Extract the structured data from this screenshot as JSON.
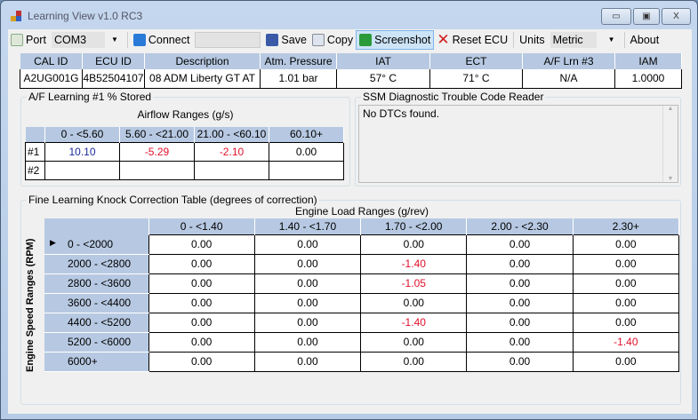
{
  "window": {
    "title": "Learning View v1.0 RC3",
    "minimize": "▭",
    "maximize": "▣",
    "close": "X"
  },
  "toolbar": {
    "port_label": "Port",
    "port_value": "COM3",
    "connect_label": "Connect",
    "connect_field": "",
    "save_label": "Save",
    "copy_label": "Copy",
    "screenshot_label": "Screenshot",
    "reset_label": "Reset ECU",
    "units_label": "Units",
    "units_value": "Metric",
    "about_label": "About"
  },
  "info": {
    "headers": [
      "CAL ID",
      "ECU ID",
      "Description",
      "Atm. Pressure",
      "IAT",
      "ECT",
      "A/F Lrn #3",
      "IAM"
    ],
    "values": [
      "A2UG001G",
      "4B52504107",
      "08 ADM Liberty GT AT",
      "1.01 bar",
      "57° C",
      "71° C",
      "N/A",
      "1.0000"
    ]
  },
  "af": {
    "title": "A/F Learning #1 % Stored",
    "subtitle": "Airflow Ranges (g/s)",
    "columns": [
      "0 - <5.60",
      "5.60 - <21.00",
      "21.00 - <60.10",
      "60.10+"
    ],
    "rows": [
      {
        "label": "#1",
        "values": [
          "10.10",
          "-5.29",
          "-2.10",
          "0.00"
        ]
      },
      {
        "label": "#2",
        "values": [
          "",
          "",
          "",
          ""
        ]
      }
    ]
  },
  "dtc": {
    "title": "SSM Diagnostic Trouble Code Reader",
    "text": "No DTCs found."
  },
  "knock": {
    "title": "Fine Learning Knock Correction Table (degrees of correction)",
    "col_title": "Engine Load Ranges (g/rev)",
    "row_title": "Engine Speed Ranges (RPM)",
    "columns": [
      "0 - <1.40",
      "1.40 - <1.70",
      "1.70 - <2.00",
      "2.00 - <2.30",
      "2.30+"
    ],
    "rows": [
      {
        "label": "0 - <2000",
        "values": [
          "0.00",
          "0.00",
          "0.00",
          "0.00",
          "0.00"
        ]
      },
      {
        "label": "2000 - <2800",
        "values": [
          "0.00",
          "0.00",
          "-1.40",
          "0.00",
          "0.00"
        ]
      },
      {
        "label": "2800 - <3600",
        "values": [
          "0.00",
          "0.00",
          "-1.05",
          "0.00",
          "0.00"
        ]
      },
      {
        "label": "3600 - <4400",
        "values": [
          "0.00",
          "0.00",
          "0.00",
          "0.00",
          "0.00"
        ]
      },
      {
        "label": "4400 - <5200",
        "values": [
          "0.00",
          "0.00",
          "-1.40",
          "0.00",
          "0.00"
        ]
      },
      {
        "label": "5200 - <6000",
        "values": [
          "0.00",
          "0.00",
          "0.00",
          "0.00",
          "-1.40"
        ]
      },
      {
        "label": "6000+",
        "values": [
          "0.00",
          "0.00",
          "0.00",
          "0.00",
          "0.00"
        ]
      }
    ]
  },
  "colors": {
    "negative": "#e0102a",
    "positive": "#1a2a9a",
    "header": "#b7c9e2"
  }
}
